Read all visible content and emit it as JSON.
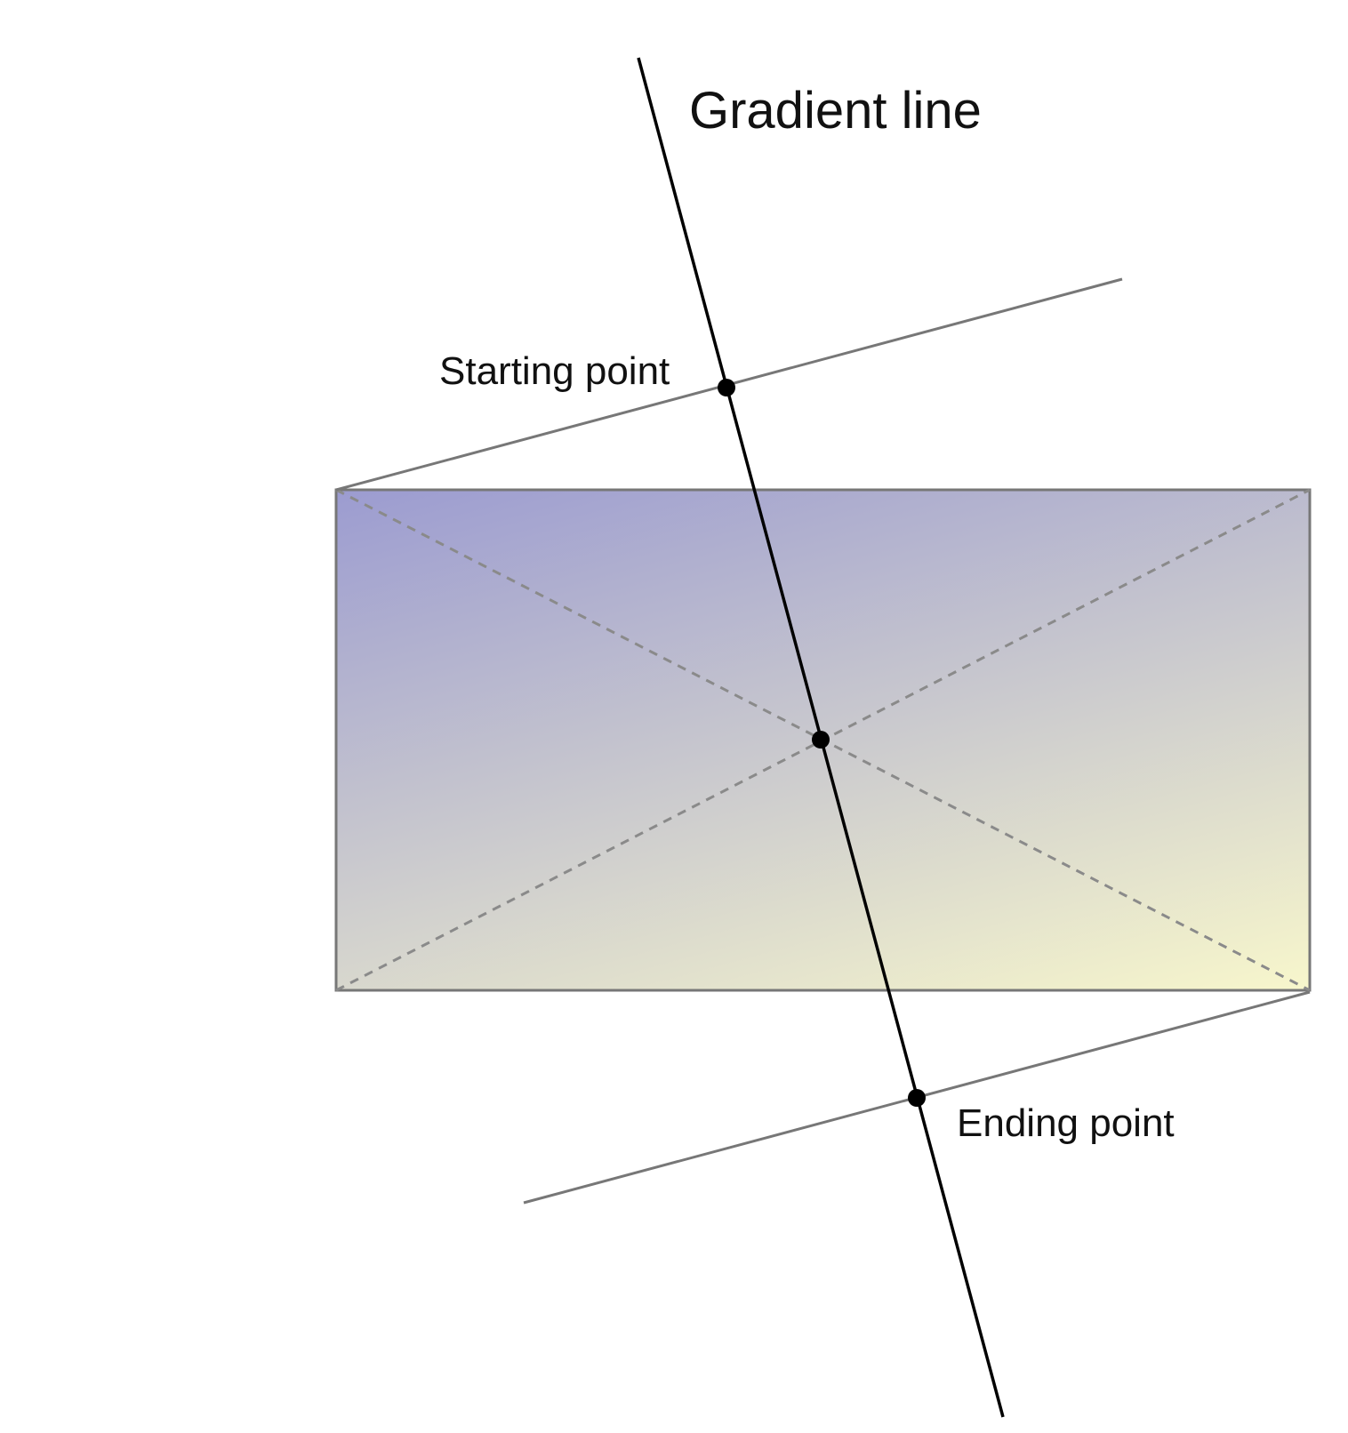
{
  "labels": {
    "gradient_line": "Gradient line",
    "starting_point": "Starting point",
    "ending_point": "Ending point"
  },
  "colors": {
    "gradient_start": "#9c9cd0",
    "gradient_end": "#f8f7cc",
    "box_border": "#777777",
    "perpendicular_lines": "#777777",
    "diagonals": "#8a8a8a",
    "gradient_line": "#000000",
    "points": "#000000"
  }
}
